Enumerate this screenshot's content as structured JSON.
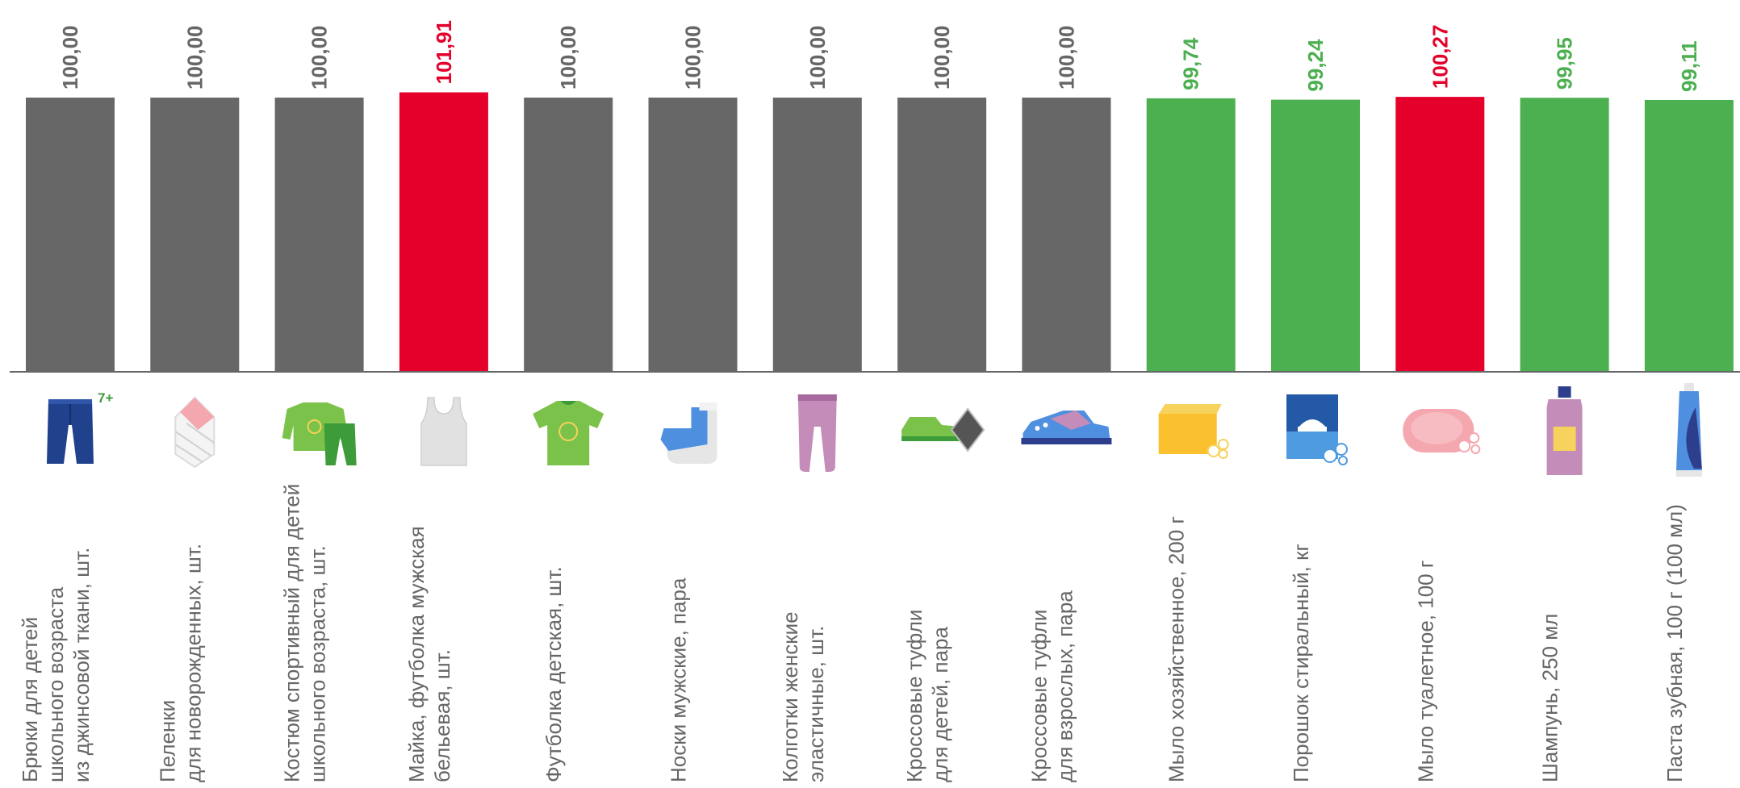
{
  "chart_data": {
    "type": "bar",
    "categories": [
      [
        "Брюки для детей",
        "школьного возраста",
        "из джинсовой ткани, шт."
      ],
      [
        "Пеленки",
        "для новорожденных, шт."
      ],
      [
        "Костюм спортивный для детей",
        "школьного возраста, шт."
      ],
      [
        "Майка, футболка мужская",
        "бельевая, шт."
      ],
      [
        "Футболка детская, шт."
      ],
      [
        "Носки мужские, пара"
      ],
      [
        "Колготки женские",
        "эластичные, шт."
      ],
      [
        "Кроссовые туфли",
        "для детей, пара"
      ],
      [
        "Кроссовые туфли",
        "для взрослых, пара"
      ],
      [
        "Мыло хозяйственное, 200 г"
      ],
      [
        "Порошок стиральный, кг"
      ],
      [
        "Мыло туалетное, 100 г"
      ],
      [
        "Шампунь, 250 мл"
      ],
      [
        "Паста зубная, 100 г (100 мл)"
      ]
    ],
    "values": [
      100.0,
      100.0,
      100.0,
      101.91,
      100.0,
      100.0,
      100.0,
      100.0,
      100.0,
      99.74,
      99.24,
      100.27,
      99.95,
      99.11
    ],
    "value_labels": [
      "100,00",
      "100,00",
      "100,00",
      "101,91",
      "100,00",
      "100,00",
      "100,00",
      "100,00",
      "100,00",
      "99,74",
      "99,24",
      "100,27",
      "99,95",
      "99,11"
    ],
    "bar_status": [
      "same",
      "same",
      "same",
      "up",
      "same",
      "same",
      "same",
      "same",
      "same",
      "down",
      "down",
      "up",
      "down",
      "down"
    ],
    "icons": [
      "jeans-icon",
      "swaddle-icon",
      "tracksuit-icon",
      "tank-top-icon",
      "kids-tshirt-icon",
      "sock-icon",
      "tights-icon",
      "kids-sneaker-icon",
      "adult-sneaker-icon",
      "laundry-soap-icon",
      "washing-powder-icon",
      "toilet-soap-icon",
      "shampoo-icon",
      "toothpaste-icon"
    ],
    "icon_badge": "7+",
    "colors": {
      "same": "#676767",
      "up": "#e4002b",
      "down": "#4caf50",
      "same_label": "#666666"
    },
    "baseline_value": 100.0,
    "title": "",
    "xlabel": "",
    "ylabel": ""
  }
}
